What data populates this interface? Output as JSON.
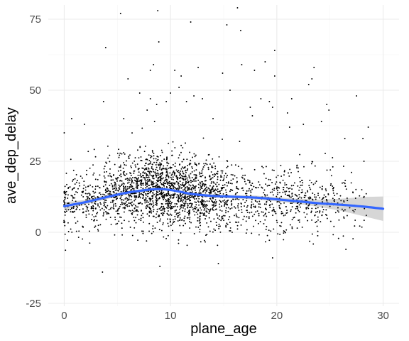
{
  "chart_data": {
    "type": "scatter",
    "title": "",
    "xlabel": "plane_age",
    "ylabel": "ave_dep_delay",
    "xlim": [
      -1.5,
      31.5
    ],
    "ylim": [
      -26,
      80
    ],
    "x_ticks": [
      0,
      10,
      20,
      30
    ],
    "x_tick_labels": [
      "0",
      "10",
      "20",
      "30"
    ],
    "y_ticks": [
      -25,
      0,
      25,
      50,
      75
    ],
    "y_tick_labels": [
      "-25",
      "0",
      "25",
      "50",
      "75"
    ],
    "grid": true,
    "legend": "none",
    "point_color": "#000000",
    "smooth_color": "#3366FF",
    "ribbon_color": "#999999",
    "scatter_density": [
      {
        "age": 0,
        "center": 10,
        "spread": 9,
        "count": 45
      },
      {
        "age": 1,
        "center": 11,
        "spread": 9,
        "count": 55
      },
      {
        "age": 2,
        "center": 11,
        "spread": 9,
        "count": 60
      },
      {
        "age": 3,
        "center": 12,
        "spread": 9,
        "count": 70
      },
      {
        "age": 4,
        "center": 13,
        "spread": 9,
        "count": 85
      },
      {
        "age": 5,
        "center": 14,
        "spread": 10,
        "count": 110
      },
      {
        "age": 6,
        "center": 15,
        "spread": 10,
        "count": 130
      },
      {
        "age": 7,
        "center": 15,
        "spread": 10,
        "count": 150
      },
      {
        "age": 8,
        "center": 16,
        "spread": 10,
        "count": 190
      },
      {
        "age": 9,
        "center": 15,
        "spread": 10,
        "count": 200
      },
      {
        "age": 10,
        "center": 15,
        "spread": 10,
        "count": 195
      },
      {
        "age": 11,
        "center": 15,
        "spread": 10,
        "count": 180
      },
      {
        "age": 12,
        "center": 14,
        "spread": 10,
        "count": 165
      },
      {
        "age": 13,
        "center": 13,
        "spread": 10,
        "count": 150
      },
      {
        "age": 14,
        "center": 13,
        "spread": 10,
        "count": 130
      },
      {
        "age": 15,
        "center": 12,
        "spread": 10,
        "count": 100
      },
      {
        "age": 16,
        "center": 12,
        "spread": 9,
        "count": 60
      },
      {
        "age": 17,
        "center": 12,
        "spread": 9,
        "count": 50
      },
      {
        "age": 18,
        "center": 12,
        "spread": 9,
        "count": 50
      },
      {
        "age": 19,
        "center": 11,
        "spread": 9,
        "count": 55
      },
      {
        "age": 20,
        "center": 11,
        "spread": 9,
        "count": 60
      },
      {
        "age": 21,
        "center": 11,
        "spread": 9,
        "count": 60
      },
      {
        "age": 22,
        "center": 11,
        "spread": 9,
        "count": 55
      },
      {
        "age": 23,
        "center": 11,
        "spread": 9,
        "count": 50
      },
      {
        "age": 24,
        "center": 10,
        "spread": 9,
        "count": 45
      },
      {
        "age": 25,
        "center": 10,
        "spread": 9,
        "count": 40
      },
      {
        "age": 26,
        "center": 10,
        "spread": 9,
        "count": 28
      },
      {
        "age": 27,
        "center": 10,
        "spread": 9,
        "count": 18
      },
      {
        "age": 28,
        "center": 10,
        "spread": 9,
        "count": 10
      }
    ],
    "outliers": [
      {
        "x": 0.0,
        "y": 35
      },
      {
        "x": 0.7,
        "y": 40
      },
      {
        "x": 1.9,
        "y": 38
      },
      {
        "x": 3.7,
        "y": 46
      },
      {
        "x": 3.9,
        "y": 65
      },
      {
        "x": 3.6,
        "y": -14
      },
      {
        "x": 5.3,
        "y": 77
      },
      {
        "x": 5.6,
        "y": 40
      },
      {
        "x": 6.0,
        "y": 54
      },
      {
        "x": 7.1,
        "y": 49
      },
      {
        "x": 7.8,
        "y": 43
      },
      {
        "x": 8.1,
        "y": 47
      },
      {
        "x": 8.1,
        "y": 57
      },
      {
        "x": 8.4,
        "y": 59
      },
      {
        "x": 8.5,
        "y": 39
      },
      {
        "x": 8.7,
        "y": 45
      },
      {
        "x": 8.9,
        "y": 67
      },
      {
        "x": 8.8,
        "y": 78
      },
      {
        "x": 9.0,
        "y": -12
      },
      {
        "x": 9.6,
        "y": 46
      },
      {
        "x": 10.0,
        "y": 49
      },
      {
        "x": 10.4,
        "y": 57
      },
      {
        "x": 10.8,
        "y": 51
      },
      {
        "x": 11.0,
        "y": 55
      },
      {
        "x": 11.5,
        "y": 46
      },
      {
        "x": 11.9,
        "y": 74
      },
      {
        "x": 12.6,
        "y": 58
      },
      {
        "x": 12.2,
        "y": 48
      },
      {
        "x": 13.0,
        "y": 47
      },
      {
        "x": 14.0,
        "y": 40
      },
      {
        "x": 14.5,
        "y": -11
      },
      {
        "x": 14.9,
        "y": 56
      },
      {
        "x": 15.3,
        "y": 73
      },
      {
        "x": 15.6,
        "y": 50
      },
      {
        "x": 16.3,
        "y": 79
      },
      {
        "x": 16.6,
        "y": 71
      },
      {
        "x": 16.7,
        "y": 59
      },
      {
        "x": 16.5,
        "y": 32
      },
      {
        "x": 17.5,
        "y": 44
      },
      {
        "x": 17.7,
        "y": 41
      },
      {
        "x": 17.9,
        "y": 57
      },
      {
        "x": 18.5,
        "y": 47
      },
      {
        "x": 18.9,
        "y": 60
      },
      {
        "x": 19.3,
        "y": 46
      },
      {
        "x": 19.6,
        "y": 44
      },
      {
        "x": 19.8,
        "y": 64
      },
      {
        "x": 19.8,
        "y": 55
      },
      {
        "x": 19.6,
        "y": -9
      },
      {
        "x": 21.0,
        "y": 42
      },
      {
        "x": 21.2,
        "y": 37
      },
      {
        "x": 21.4,
        "y": 47
      },
      {
        "x": 22.5,
        "y": 38
      },
      {
        "x": 23.0,
        "y": 52
      },
      {
        "x": 23.3,
        "y": 54
      },
      {
        "x": 23.5,
        "y": 58
      },
      {
        "x": 24.2,
        "y": 39
      },
      {
        "x": 24.7,
        "y": 45
      },
      {
        "x": 24.9,
        "y": 43
      },
      {
        "x": 26.4,
        "y": 33
      },
      {
        "x": 26.5,
        "y": -6
      },
      {
        "x": 27.5,
        "y": 48
      },
      {
        "x": 28.1,
        "y": 33
      },
      {
        "x": 28.2,
        "y": 25
      },
      {
        "x": 28.6,
        "y": 37
      }
    ],
    "smooth": {
      "method": "loess",
      "x": [
        0,
        2,
        4,
        6,
        8,
        9,
        10,
        11,
        12,
        14,
        16,
        18,
        20,
        22,
        24,
        26,
        28,
        30
      ],
      "y": [
        9.2,
        10.6,
        12.4,
        14.0,
        15.0,
        15.2,
        14.9,
        14.2,
        13.5,
        12.8,
        12.5,
        12.2,
        11.6,
        10.9,
        10.2,
        9.7,
        9.1,
        8.3
      ],
      "lower": [
        7.8,
        9.8,
        11.7,
        13.4,
        14.5,
        14.8,
        14.5,
        13.8,
        13.1,
        12.3,
        11.9,
        11.5,
        10.9,
        10.0,
        8.9,
        7.6,
        5.8,
        4.0
      ],
      "upper": [
        10.6,
        11.4,
        13.1,
        14.6,
        15.5,
        15.6,
        15.3,
        14.6,
        13.9,
        13.3,
        13.1,
        12.9,
        12.3,
        11.8,
        11.5,
        11.8,
        12.4,
        12.6
      ]
    }
  }
}
